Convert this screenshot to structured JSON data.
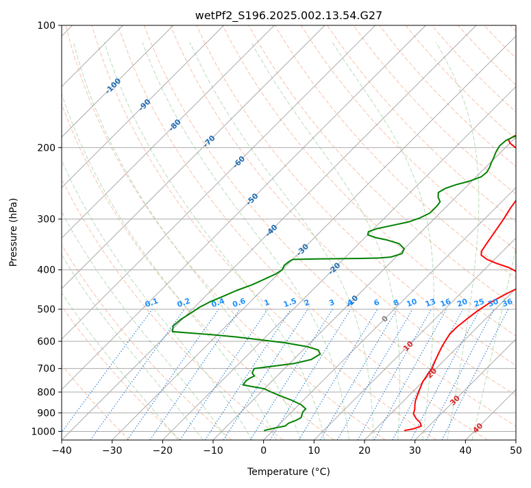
{
  "chart_data": {
    "type": "line",
    "title": "wetPf2_S196.2025.002.13.54.G27",
    "xlabel": "Temperature (°C)",
    "ylabel": "Pressure (hPa)",
    "xlim": [
      -40,
      50
    ],
    "ylim": [
      1050,
      100
    ],
    "y_scale": "log",
    "x_ticks": [
      "−40",
      "−30",
      "−20",
      "−10",
      "0",
      "10",
      "20",
      "30",
      "40",
      "50"
    ],
    "x_tick_values": [
      -40,
      -30,
      -20,
      -10,
      0,
      10,
      20,
      30,
      40,
      50
    ],
    "y_ticks": [
      "100",
      "200",
      "300",
      "400",
      "500",
      "600",
      "700",
      "800",
      "900",
      "1000"
    ],
    "y_tick_values": [
      100,
      200,
      300,
      400,
      500,
      600,
      700,
      800,
      900,
      1000
    ],
    "grid": true,
    "isotherm_labels": [
      "-100",
      "-90",
      "-80",
      "-70",
      "-60",
      "-50",
      "-40",
      "-30",
      "-20",
      "-10",
      "0",
      "10",
      "20",
      "30",
      "40"
    ],
    "isotherm_values": [
      -100,
      -90,
      -80,
      -70,
      -60,
      -50,
      -40,
      -30,
      -20,
      -10,
      0,
      10,
      20,
      30,
      40
    ],
    "mixing_ratio_labels": [
      "0.1",
      "0.2",
      "0.4",
      "0.6",
      "1",
      "1.5",
      "2",
      "3",
      "4",
      "6",
      "8",
      "10",
      "13",
      "16",
      "20",
      "25",
      "30",
      "36"
    ],
    "mixing_ratio_values": [
      0.1,
      0.2,
      0.4,
      0.6,
      1,
      1.5,
      2,
      3,
      4,
      6,
      8,
      10,
      13,
      16,
      20,
      25,
      30,
      36
    ],
    "series": [
      {
        "role": "temperature",
        "color": "#ff0000",
        "points": [
          [
            26.0,
            995
          ],
          [
            27.5,
            985
          ],
          [
            28.5,
            970
          ],
          [
            27.5,
            950
          ],
          [
            26.0,
            930
          ],
          [
            24.5,
            905
          ],
          [
            23.8,
            880
          ],
          [
            23.0,
            860
          ],
          [
            22.3,
            840
          ],
          [
            21.5,
            810
          ],
          [
            20.7,
            780
          ],
          [
            20.0,
            755
          ],
          [
            19.7,
            735
          ],
          [
            19.2,
            700
          ],
          [
            18.3,
            670
          ],
          [
            17.6,
            645
          ],
          [
            16.9,
            620
          ],
          [
            16.3,
            595
          ],
          [
            15.9,
            575
          ],
          [
            15.9,
            555
          ],
          [
            16.3,
            530
          ],
          [
            16.8,
            505
          ],
          [
            17.6,
            483
          ],
          [
            19.0,
            460
          ],
          [
            20.8,
            438
          ],
          [
            21.0,
            430
          ],
          [
            19.5,
            418
          ],
          [
            17.0,
            405
          ],
          [
            14.5,
            395
          ],
          [
            11.0,
            385
          ],
          [
            8.5,
            377
          ],
          [
            6.5,
            368
          ],
          [
            5.8,
            360
          ],
          [
            5.3,
            345
          ],
          [
            4.5,
            320
          ],
          [
            3.8,
            300
          ],
          [
            3.0,
            282
          ],
          [
            2.4,
            265
          ],
          [
            2.5,
            250
          ],
          [
            3.3,
            240
          ],
          [
            3.0,
            232
          ],
          [
            1.0,
            225
          ],
          [
            -1.8,
            215
          ],
          [
            -5.0,
            207
          ],
          [
            -8.0,
            200
          ],
          [
            -10.0,
            195
          ],
          [
            -11.0,
            191
          ],
          [
            -10.5,
            187
          ],
          [
            -7.5,
            184
          ],
          [
            -3.5,
            181
          ],
          [
            -1.0,
            178
          ],
          [
            0.5,
            175
          ],
          [
            1.3,
            170
          ],
          [
            2.3,
            165
          ],
          [
            3.5,
            160
          ],
          [
            4.6,
            153
          ],
          [
            6.0,
            146
          ],
          [
            8.0,
            140
          ],
          [
            10.5,
            133
          ],
          [
            12.5,
            126
          ],
          [
            14.5,
            118
          ],
          [
            16.2,
            110
          ],
          [
            17.5,
            103
          ],
          [
            18.2,
            100
          ]
        ]
      },
      {
        "role": "dewpoint",
        "color": "#008000",
        "points": [
          [
            -1.8,
            995
          ],
          [
            0.0,
            980
          ],
          [
            1.5,
            970
          ],
          [
            1.6,
            955
          ],
          [
            2.5,
            940
          ],
          [
            3.0,
            925
          ],
          [
            2.6,
            910
          ],
          [
            2.2,
            895
          ],
          [
            2.2,
            880
          ],
          [
            0.5,
            860
          ],
          [
            -2.0,
            840
          ],
          [
            -5.0,
            820
          ],
          [
            -8.0,
            800
          ],
          [
            -10.0,
            785
          ],
          [
            -13.0,
            775
          ],
          [
            -15.0,
            768
          ],
          [
            -15.2,
            750
          ],
          [
            -15.0,
            740
          ],
          [
            -14.5,
            730
          ],
          [
            -15.4,
            720
          ],
          [
            -15.7,
            712
          ],
          [
            -16.0,
            700
          ],
          [
            -12.5,
            690
          ],
          [
            -9.0,
            680
          ],
          [
            -6.5,
            665
          ],
          [
            -5.8,
            645
          ],
          [
            -7.0,
            630
          ],
          [
            -10.0,
            618
          ],
          [
            -15.0,
            605
          ],
          [
            -21.0,
            594
          ],
          [
            -26.0,
            585
          ],
          [
            -31.0,
            578
          ],
          [
            -36.0,
            572
          ],
          [
            -39.5,
            568
          ],
          [
            -40.5,
            550
          ],
          [
            -40.3,
            530
          ],
          [
            -39.5,
            510
          ],
          [
            -39.0,
            495
          ],
          [
            -38.0,
            480
          ],
          [
            -36.5,
            465
          ],
          [
            -35.0,
            450
          ],
          [
            -33.0,
            435
          ],
          [
            -31.5,
            420
          ],
          [
            -30.5,
            410
          ],
          [
            -30.0,
            400
          ],
          [
            -30.5,
            390
          ],
          [
            -30.3,
            382
          ],
          [
            -30.0,
            377
          ],
          [
            -25.0,
            376
          ],
          [
            -17.0,
            375
          ],
          [
            -13.0,
            374
          ],
          [
            -11.0,
            372
          ],
          [
            -9.5,
            365
          ],
          [
            -10.0,
            355
          ],
          [
            -12.0,
            345
          ],
          [
            -15.0,
            338
          ],
          [
            -18.0,
            333
          ],
          [
            -20.0,
            328
          ],
          [
            -20.5,
            322
          ],
          [
            -19.5,
            317
          ],
          [
            -17.5,
            312
          ],
          [
            -14.5,
            305
          ],
          [
            -13.0,
            298
          ],
          [
            -12.0,
            290
          ],
          [
            -12.0,
            278
          ],
          [
            -12.2,
            272
          ],
          [
            -13.5,
            265
          ],
          [
            -14.4,
            258
          ],
          [
            -13.8,
            252
          ],
          [
            -12.5,
            247
          ],
          [
            -10.5,
            242
          ],
          [
            -9.0,
            236
          ],
          [
            -8.8,
            230
          ],
          [
            -9.2,
            224
          ],
          [
            -9.8,
            218
          ],
          [
            -10.3,
            212
          ],
          [
            -11.0,
            205
          ],
          [
            -11.5,
            198
          ],
          [
            -11.3,
            192
          ],
          [
            -10.5,
            188
          ],
          [
            -8.5,
            184
          ],
          [
            -7.5,
            182
          ],
          [
            -7.8,
            179
          ],
          [
            -9.5,
            175
          ],
          [
            -10.0,
            170
          ],
          [
            -9.5,
            165
          ],
          [
            -8.8,
            160
          ],
          [
            -7.5,
            155
          ],
          [
            -5.8,
            150
          ],
          [
            -4.8,
            145
          ],
          [
            -4.3,
            138
          ],
          [
            -4.2,
            130
          ],
          [
            -3.8,
            122
          ],
          [
            -2.5,
            117
          ],
          [
            -0.8,
            112
          ],
          [
            0.5,
            107
          ],
          [
            1.0,
            102
          ],
          [
            1.2,
            100
          ]
        ]
      }
    ]
  }
}
